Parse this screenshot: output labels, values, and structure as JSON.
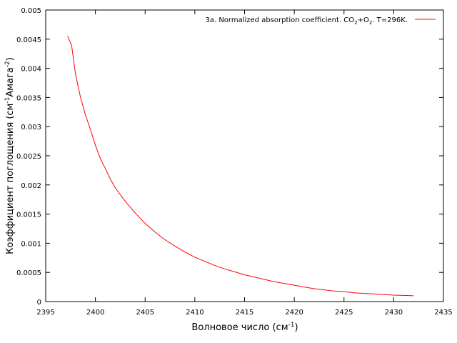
{
  "chart_data": {
    "type": "line",
    "xlabel": {
      "text": "Волновое число (см",
      "sup": "-1",
      "tail": ")"
    },
    "ylabel": {
      "pre": "Коэффициент поглощения (см",
      "sup1": "-1",
      "mid": "Амага",
      "sup2": "-2",
      "tail": ")"
    },
    "legend_placement": "top-right",
    "grid": false,
    "xlim": [
      2395,
      2435
    ],
    "ylim": [
      0,
      0.005
    ],
    "x_ticks": [
      2395,
      2400,
      2405,
      2410,
      2415,
      2420,
      2425,
      2430,
      2435
    ],
    "y_ticks": [
      0,
      0.0005,
      0.001,
      0.0015,
      0.002,
      0.0025,
      0.003,
      0.0035,
      0.004,
      0.0045,
      0.005
    ],
    "x_tick_labels": [
      "2395",
      "2400",
      "2405",
      "2410",
      "2415",
      "2420",
      "2425",
      "2430",
      "2435"
    ],
    "y_tick_labels": [
      "0",
      "0.0005",
      "0.001",
      "0.0015",
      "0.002",
      "0.0025",
      "0.003",
      "0.0035",
      "0.004",
      "0.0045",
      "0.005"
    ],
    "series": [
      {
        "name": "3a. Normalized absorption coefficient. CO2+O2. T=296K.",
        "name_parts": [
          "3a. Normalized absorption coefficient. CO",
          "2",
          "+O",
          "2",
          ". T=296K."
        ],
        "color": "#ff0000",
        "x": [
          2397.2,
          2397.6,
          2398.0,
          2398.5,
          2399.0,
          2399.5,
          2400.0,
          2400.5,
          2401.0,
          2401.5,
          2402.0,
          2403.0,
          2404.0,
          2405.0,
          2406.0,
          2407.0,
          2408.0,
          2409.0,
          2410.0,
          2411.0,
          2412.0,
          2413.0,
          2414.0,
          2415.0,
          2416.0,
          2417.0,
          2418.0,
          2419.0,
          2420.0,
          2421.0,
          2422.0,
          2423.0,
          2424.0,
          2425.0,
          2426.0,
          2427.0,
          2428.0,
          2429.0,
          2430.0,
          2431.0,
          2432.0
        ],
        "y": [
          0.00455,
          0.0044,
          0.0039,
          0.0035,
          0.0032,
          0.00295,
          0.00268,
          0.00245,
          0.00228,
          0.0021,
          0.00195,
          0.00172,
          0.00152,
          0.00134,
          0.00119,
          0.00106,
          0.00095,
          0.00085,
          0.00076,
          0.00069,
          0.00062,
          0.00056,
          0.00051,
          0.00046,
          0.00042,
          0.00038,
          0.00034,
          0.00031,
          0.00028,
          0.00025,
          0.00022,
          0.0002,
          0.00018,
          0.00017,
          0.00015,
          0.00014,
          0.00013,
          0.00012,
          0.00011,
          0.000105,
          0.0001
        ]
      }
    ]
  }
}
